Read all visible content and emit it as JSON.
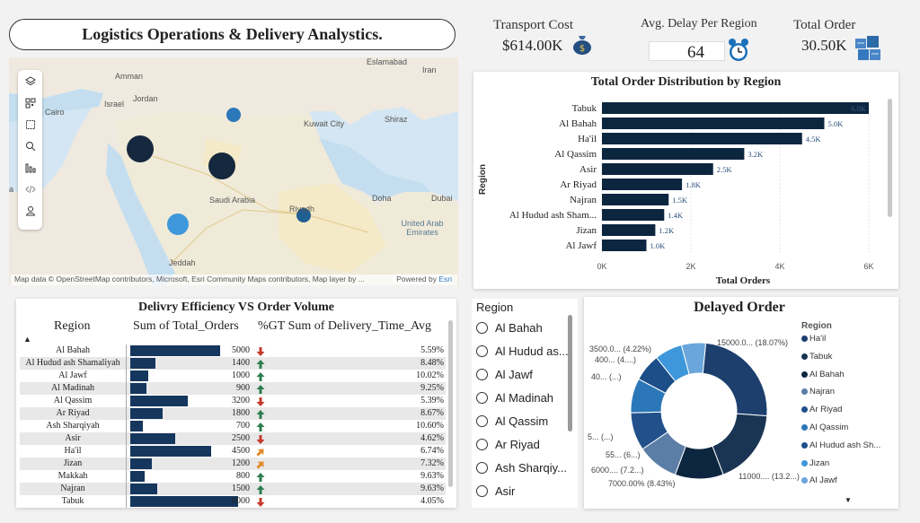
{
  "title": "Logistics Operations & Delivery Analystics.",
  "kpis": {
    "transport_cost": {
      "label": "Transport Cost",
      "value": "$614.00K"
    },
    "avg_delay": {
      "label": "Avg. Delay Per Region",
      "value": "64"
    },
    "total_order": {
      "label": "Total Order",
      "value": "30.50K"
    }
  },
  "map": {
    "labels": {
      "amman": "Amman",
      "israel": "Israel",
      "jordan": "Jordan",
      "cairo": "Cairo",
      "kuwait": "Kuwait City",
      "shiraz": "Shiraz",
      "iran": "Iran",
      "saudi": "Saudi Arabia",
      "doha": "Doha",
      "dubai": "Dubai",
      "riyadh": "Riyadh",
      "uae": "United Arab Emirates",
      "jeddah": "Jeddah",
      "eslamabad": "Eslamabad",
      "a": "a"
    },
    "attribution": "Map data © OpenStreetMap contributors, Microsoft, Esri Community Maps contributors, Map layer by ...",
    "powered": "Powered by ",
    "esri": "Esri"
  },
  "colors": {
    "navy": "#0d2640",
    "mid_blue": "#2b77b8",
    "light_blue": "#3f97db",
    "teal_blue": "#1f5f91",
    "red_arrow": "#c43a2d",
    "green_arrow": "#2e7d4f",
    "orange_arrow": "#e08a2a"
  },
  "chart_data": [
    {
      "type": "bar",
      "title": "Total Order Distribution by Region",
      "xlabel": "Total Orders",
      "ylabel": "Region",
      "categories": [
        "Tabuk",
        "Al Bahah",
        "Ha'il",
        "Al Qassim",
        "Asir",
        "Ar Riyad",
        "Najran",
        "Al Hudud ash Sham...",
        "Jizan",
        "Al Jawf"
      ],
      "values": [
        6000,
        5000,
        4500,
        3200,
        2500,
        1800,
        1500,
        1400,
        1200,
        1000
      ],
      "data_labels": [
        "6.0K",
        "5.0K",
        "4.5K",
        "3.2K",
        "2.5K",
        "1.8K",
        "1.5K",
        "1.4K",
        "1.2K",
        "1.0K"
      ],
      "xticks": [
        "0K",
        "2K",
        "4K",
        "6K"
      ],
      "xlim": [
        0,
        6000
      ]
    },
    {
      "type": "pie",
      "title": "Delayed Order",
      "legend_title": "Region",
      "legend": [
        "Ha'il",
        "Tabuk",
        "Al Bahah",
        "Najran",
        "Ar Riyad",
        "Al Qassim",
        "Al Hudud ash Sh...",
        "Jizan",
        "Al Jawf"
      ],
      "values": [
        15000,
        11000,
        7000,
        6000,
        5500,
        5000,
        4000,
        4000,
        3500
      ],
      "slice_labels": [
        "15000.0... (18.07%)",
        "11000.... (13.2...)",
        "7000.00% (8.43%)",
        "6000.... (7.2...)",
        "55... (6...)",
        "5... (...)",
        "40... (...)",
        "400... (4....)",
        "3500.0... (4.22%)"
      ]
    }
  ],
  "table": {
    "title": "Delivry Efficiency VS Order Volume",
    "headers": [
      "Region",
      "Sum of Total_Orders",
      "%GT Sum of Delivery_Time_Avg"
    ],
    "rows": [
      {
        "region": "Al Bahah",
        "orders": "5000",
        "pct": "5.59%",
        "trend": "down"
      },
      {
        "region": "Al Hudud ash Shamaliyah",
        "orders": "1400",
        "pct": "8.48%",
        "trend": "up"
      },
      {
        "region": "Al Jawf",
        "orders": "1000",
        "pct": "10.02%",
        "trend": "up"
      },
      {
        "region": "Al Madinah",
        "orders": "900",
        "pct": "9.25%",
        "trend": "up"
      },
      {
        "region": "Al Qassim",
        "orders": "3200",
        "pct": "5.39%",
        "trend": "down"
      },
      {
        "region": "Ar Riyad",
        "orders": "1800",
        "pct": "8.67%",
        "trend": "up"
      },
      {
        "region": "Ash Sharqiyah",
        "orders": "700",
        "pct": "10.60%",
        "trend": "up"
      },
      {
        "region": "Asir",
        "orders": "2500",
        "pct": "4.62%",
        "trend": "down"
      },
      {
        "region": "Ha'il",
        "orders": "4500",
        "pct": "6.74%",
        "trend": "diag"
      },
      {
        "region": "Jizan",
        "orders": "1200",
        "pct": "7.32%",
        "trend": "diag"
      },
      {
        "region": "Makkah",
        "orders": "800",
        "pct": "9.63%",
        "trend": "up"
      },
      {
        "region": "Najran",
        "orders": "1500",
        "pct": "9.63%",
        "trend": "up"
      },
      {
        "region": "Tabuk",
        "orders": "6000",
        "pct": "4.05%",
        "trend": "down"
      }
    ]
  },
  "slicer": {
    "title": "Region",
    "items": [
      "Al Bahah",
      "Al Hudud as...",
      "Al Jawf",
      "Al Madinah",
      "Al Qassim",
      "Ar Riyad",
      "Ash Sharqiy...",
      "Asir"
    ]
  }
}
